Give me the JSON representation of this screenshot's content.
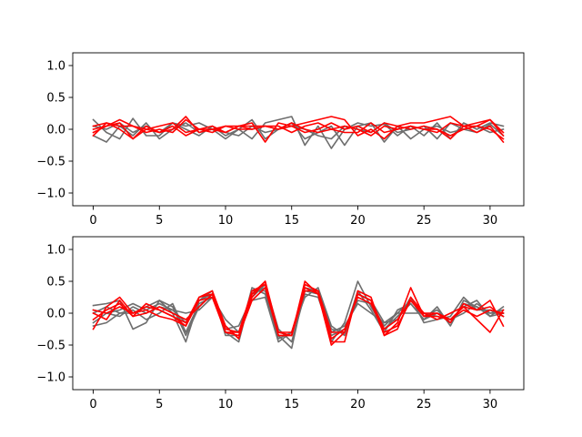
{
  "colors": {
    "gray_series": "#6e6e6e",
    "red_series": "#ff0000",
    "axes": "#000000",
    "background": "#ffffff"
  },
  "chart_data": [
    {
      "type": "line",
      "xlim": [
        -1.55,
        32.55
      ],
      "ylim": [
        -1.2,
        1.2
      ],
      "x_ticks": [
        0,
        5,
        10,
        15,
        20,
        25,
        30
      ],
      "y_ticks": [
        -1.0,
        -0.5,
        0.0,
        0.5,
        1.0
      ],
      "x_tick_labels": [
        "0",
        "5",
        "10",
        "15",
        "20",
        "25",
        "30"
      ],
      "y_tick_labels": [
        "−1.0",
        "−0.5",
        "0.0",
        "0.5",
        "1.0"
      ],
      "grid": false,
      "x": [
        0,
        1,
        2,
        3,
        4,
        5,
        6,
        7,
        8,
        9,
        10,
        11,
        12,
        13,
        14,
        15,
        16,
        17,
        18,
        19,
        20,
        21,
        22,
        23,
        24,
        25,
        26,
        27,
        28,
        29,
        30,
        31
      ],
      "series": [
        {
          "color": "gray",
          "values": [
            0.15,
            -0.05,
            -0.15,
            0.17,
            -0.1,
            -0.1,
            0.1,
            0.05,
            0.1,
            0.0,
            -0.15,
            0.0,
            -0.15,
            0.1,
            0.15,
            0.2,
            -0.25,
            0.05,
            -0.3,
            0.0,
            0.1,
            0.05,
            0.08,
            -0.1,
            0.05,
            -0.1,
            0.1,
            -0.15,
            0.1,
            0.0,
            0.1,
            0.05
          ]
        },
        {
          "color": "gray",
          "values": [
            -0.1,
            -0.2,
            0.05,
            -0.1,
            0.1,
            -0.15,
            0.0,
            0.1,
            -0.05,
            0.0,
            -0.05,
            -0.1,
            0.05,
            -0.05,
            0.0,
            0.1,
            -0.15,
            -0.05,
            0.05,
            -0.25,
            0.05,
            0.1,
            -0.2,
            0.05,
            -0.15,
            0.0,
            0.05,
            -0.05,
            0.0,
            -0.05,
            0.08,
            -0.1
          ]
        },
        {
          "color": "gray",
          "values": [
            0.05,
            0.0,
            0.1,
            -0.05,
            0.05,
            -0.05,
            0.1,
            0.0,
            -0.1,
            0.05,
            -0.1,
            0.0,
            0.15,
            -0.15,
            0.0,
            0.05,
            0.0,
            -0.1,
            -0.15,
            0.05,
            0.0,
            -0.05,
            0.1,
            -0.05,
            0.0,
            0.05,
            -0.15,
            0.1,
            0.0,
            0.05,
            -0.05,
            0.0
          ]
        },
        {
          "color": "red",
          "values": [
            -0.1,
            0.1,
            0.0,
            -0.15,
            0.05,
            -0.05,
            0.0,
            0.2,
            -0.05,
            0.0,
            -0.05,
            0.05,
            0.1,
            -0.2,
            0.1,
            0.05,
            0.1,
            0.15,
            0.2,
            0.15,
            -0.1,
            0.0,
            -0.15,
            0.05,
            0.1,
            0.1,
            0.15,
            0.2,
            0.05,
            0.1,
            0.15,
            -0.1
          ]
        },
        {
          "color": "red",
          "values": [
            0.05,
            0.1,
            0.05,
            0.05,
            0.0,
            0.05,
            0.1,
            -0.05,
            0.0,
            0.05,
            -0.05,
            0.05,
            0.0,
            0.05,
            0.0,
            0.05,
            -0.05,
            0.0,
            0.1,
            0.0,
            0.05,
            -0.05,
            0.1,
            0.05,
            0.0,
            0.05,
            0.0,
            -0.1,
            0.0,
            0.05,
            0.0,
            -0.15
          ]
        },
        {
          "color": "red",
          "values": [
            0.0,
            0.05,
            0.15,
            0.05,
            -0.05,
            0.0,
            -0.05,
            0.15,
            0.0,
            0.0,
            0.05,
            0.05,
            0.05,
            0.05,
            0.05,
            -0.05,
            0.05,
            0.1,
            0.0,
            -0.05,
            -0.05,
            0.1,
            -0.05,
            0.0,
            0.05,
            0.0,
            -0.05,
            0.1,
            0.05,
            0.05,
            0.15,
            -0.05
          ]
        },
        {
          "color": "red",
          "values": [
            -0.05,
            0.05,
            0.1,
            -0.15,
            0.0,
            -0.05,
            0.05,
            -0.1,
            0.0,
            -0.05,
            0.05,
            0.0,
            0.0,
            0.05,
            0.0,
            0.1,
            0.0,
            -0.05,
            0.0,
            0.05,
            0.0,
            -0.1,
            0.05,
            0.0,
            0.05,
            0.0,
            0.0,
            -0.15,
            0.05,
            -0.05,
            0.05,
            -0.2
          ]
        }
      ]
    },
    {
      "type": "line",
      "xlim": [
        -1.55,
        32.55
      ],
      "ylim": [
        -1.2,
        1.2
      ],
      "x_ticks": [
        0,
        5,
        10,
        15,
        20,
        25,
        30
      ],
      "y_ticks": [
        -1.0,
        -0.5,
        0.0,
        0.5,
        1.0
      ],
      "x_tick_labels": [
        "0",
        "5",
        "10",
        "15",
        "20",
        "25",
        "30"
      ],
      "y_tick_labels": [
        "−1.0",
        "−0.5",
        "0.0",
        "0.5",
        "1.0"
      ],
      "grid": false,
      "x": [
        0,
        1,
        2,
        3,
        4,
        5,
        6,
        7,
        8,
        9,
        10,
        11,
        12,
        13,
        14,
        15,
        16,
        17,
        18,
        19,
        20,
        21,
        22,
        23,
        24,
        25,
        26,
        27,
        28,
        29,
        30,
        31
      ],
      "series": [
        {
          "color": "gray",
          "values": [
            0.12,
            0.15,
            0.2,
            -0.25,
            -0.15,
            0.2,
            0.0,
            -0.45,
            0.2,
            0.3,
            -0.3,
            -0.45,
            0.35,
            0.35,
            -0.35,
            -0.55,
            0.4,
            0.35,
            -0.45,
            -0.15,
            0.5,
            0.1,
            -0.25,
            -0.05,
            0.15,
            -0.1,
            0.1,
            -0.2,
            0.2,
            0.1,
            0.0,
            0.05
          ]
        },
        {
          "color": "gray",
          "values": [
            -0.15,
            0.0,
            0.05,
            0.15,
            0.05,
            0.15,
            0.05,
            0.0,
            0.05,
            0.25,
            -0.1,
            -0.3,
            0.3,
            0.4,
            -0.3,
            -0.35,
            0.35,
            0.3,
            -0.3,
            -0.2,
            0.15,
            0.0,
            -0.15,
            0.0,
            0.0,
            0.0,
            -0.05,
            -0.1,
            0.0,
            0.15,
            0.0,
            0.0
          ]
        },
        {
          "color": "gray",
          "values": [
            0.0,
            0.1,
            0.0,
            0.0,
            0.1,
            0.2,
            0.1,
            -0.35,
            0.1,
            0.3,
            -0.2,
            -0.4,
            0.4,
            0.3,
            -0.4,
            -0.3,
            0.25,
            0.4,
            -0.2,
            -0.35,
            0.3,
            0.2,
            -0.15,
            -0.1,
            0.25,
            -0.15,
            -0.1,
            -0.05,
            0.25,
            0.05,
            0.05,
            -0.05
          ]
        },
        {
          "color": "gray",
          "values": [
            -0.2,
            -0.15,
            0.0,
            0.05,
            -0.1,
            0.0,
            0.15,
            -0.3,
            0.15,
            0.25,
            -0.25,
            -0.2,
            0.25,
            0.45,
            -0.25,
            -0.45,
            0.3,
            0.25,
            -0.35,
            -0.25,
            0.2,
            0.15,
            -0.2,
            0.0,
            0.2,
            -0.05,
            0.05,
            -0.15,
            0.15,
            0.1,
            -0.05,
            0.1
          ]
        },
        {
          "color": "gray",
          "values": [
            0.05,
            0.0,
            -0.05,
            0.1,
            0.0,
            0.1,
            0.05,
            -0.15,
            0.2,
            0.35,
            -0.35,
            -0.35,
            0.2,
            0.25,
            -0.45,
            -0.3,
            0.35,
            0.35,
            -0.25,
            -0.3,
            0.35,
            0.05,
            -0.3,
            0.05,
            0.15,
            -0.1,
            0.0,
            -0.1,
            0.1,
            0.2,
            -0.05,
            0.0
          ]
        },
        {
          "color": "red",
          "values": [
            -0.25,
            0.1,
            0.25,
            0.0,
            0.1,
            0.05,
            -0.05,
            -0.2,
            0.25,
            0.35,
            -0.2,
            -0.4,
            0.3,
            0.5,
            -0.35,
            -0.35,
            0.5,
            0.3,
            -0.5,
            -0.3,
            0.3,
            0.2,
            -0.35,
            -0.15,
            0.4,
            -0.05,
            0.0,
            -0.15,
            0.15,
            0.05,
            0.2,
            -0.2
          ]
        },
        {
          "color": "red",
          "values": [
            -0.1,
            0.05,
            0.15,
            -0.05,
            0.15,
            0.05,
            -0.05,
            -0.15,
            0.25,
            0.3,
            -0.25,
            -0.3,
            0.35,
            0.45,
            -0.3,
            -0.3,
            0.4,
            0.3,
            -0.45,
            -0.45,
            0.35,
            0.25,
            -0.35,
            -0.25,
            0.25,
            0.0,
            0.0,
            -0.1,
            0.05,
            -0.05,
            0.05,
            0.0
          ]
        },
        {
          "color": "red",
          "values": [
            0.0,
            -0.1,
            0.2,
            -0.05,
            0.0,
            0.1,
            0.0,
            -0.1,
            0.1,
            0.3,
            -0.3,
            -0.35,
            0.2,
            0.4,
            -0.35,
            -0.35,
            0.45,
            0.35,
            -0.4,
            -0.25,
            0.25,
            0.15,
            -0.3,
            -0.2,
            0.2,
            0.0,
            -0.1,
            0.0,
            0.1,
            -0.1,
            -0.3,
            0.05
          ]
        },
        {
          "color": "red",
          "values": [
            0.05,
            0.0,
            0.1,
            0.0,
            0.05,
            -0.05,
            -0.1,
            -0.2,
            0.2,
            0.25,
            -0.3,
            -0.3,
            0.25,
            0.5,
            -0.3,
            -0.35,
            0.35,
            0.35,
            -0.3,
            -0.3,
            0.3,
            0.2,
            -0.25,
            -0.1,
            0.2,
            -0.05,
            -0.05,
            -0.1,
            0.1,
            0.05,
            0.1,
            -0.05
          ]
        }
      ]
    }
  ]
}
